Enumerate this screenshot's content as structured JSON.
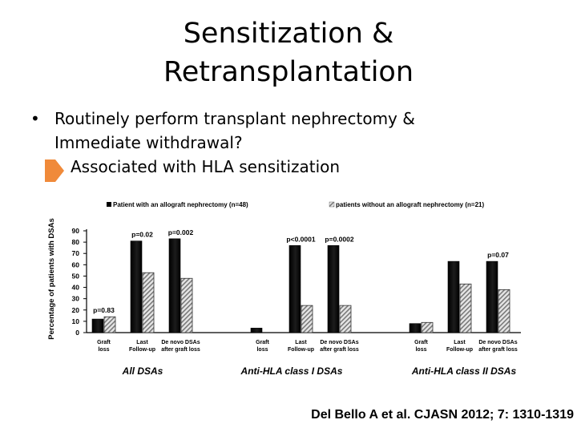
{
  "slide": {
    "title_line1": "Sensitization &",
    "title_line2": "Retransplantation",
    "bullet_marker": "•",
    "bullet_line1": "Routinely perform transplant nephrectomy &",
    "bullet_line2": "Immediate withdrawal?",
    "sub_bullet": "Associated with HLA sensitization",
    "citation": "Del Bello A et al. CJASN 2012; 7: 1310-1319",
    "arrow_icon": "right-arrow-icon",
    "colors": {
      "arrow": "#f08a3a",
      "series_nephrectomy": "#000000",
      "series_no_nephrectomy": "#bdbdbd"
    }
  },
  "chart_data": {
    "type": "bar",
    "ylabel": "Percentage of patients with DSAs",
    "ylim": [
      0,
      90
    ],
    "yticks": [
      0,
      10,
      20,
      30,
      40,
      50,
      60,
      70,
      80,
      90
    ],
    "grid": false,
    "legend_position": "top",
    "series": [
      {
        "name": "Patient with an allograft nephrectomy (n=48)",
        "style": "solid-black"
      },
      {
        "name": "patients without an allograft nephrectomy (n=21)",
        "style": "striped-grey"
      }
    ],
    "groups": [
      {
        "label": "All DSAs",
        "categories": [
          "Graft loss",
          "Last Follow-up",
          "De novo DSAs after graft loss"
        ],
        "values_nephrectomy": [
          12,
          81,
          83
        ],
        "values_no_nephrectomy": [
          14,
          53,
          48
        ],
        "p_values": [
          "p=0.83",
          "p=0.02",
          "p=0.002"
        ]
      },
      {
        "label": "Anti-HLA class I DSAs",
        "categories": [
          "Graft loss",
          "Last Follow-up",
          "De novo DSAs after graft loss"
        ],
        "values_nephrectomy": [
          4,
          77,
          77
        ],
        "values_no_nephrectomy": [
          0,
          24,
          24
        ],
        "p_values": [
          "",
          "p<0.0001",
          "p=0.0002"
        ]
      },
      {
        "label": "Anti-HLA class II DSAs",
        "categories": [
          "Graft loss",
          "Last Follow-up",
          "De novo DSAs after graft loss"
        ],
        "values_nephrectomy": [
          8,
          63,
          63
        ],
        "values_no_nephrectomy": [
          9,
          43,
          38
        ],
        "p_values": [
          "",
          "",
          "p=0.07"
        ]
      }
    ]
  }
}
